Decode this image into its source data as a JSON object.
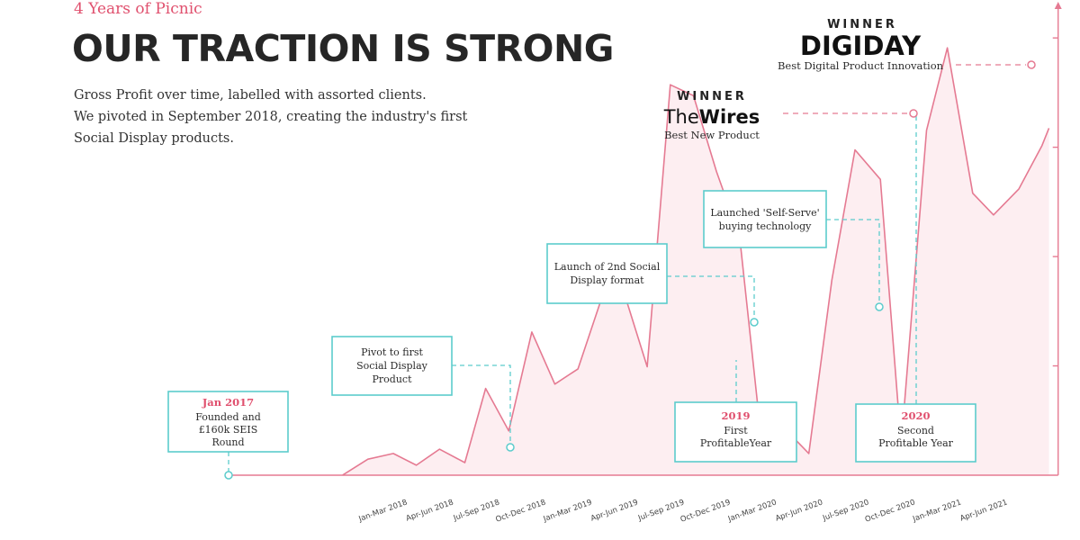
{
  "header": {
    "eyebrow": "4 Years of Picnic",
    "title": "OUR TRACTION IS STRONG",
    "description_lines": [
      "Gross Profit over time, labelled with assorted clients.",
      "We pivoted in September 2018, creating the industry's first",
      "Social Display products."
    ]
  },
  "colors": {
    "line": "#e57a92",
    "area": "#fdeef1",
    "accent": "#e0506e",
    "annotation": "#5ccccc",
    "axis": "#e57a92"
  },
  "chart_data": {
    "type": "line",
    "title": "",
    "xlabel": "",
    "ylabel": "",
    "x_ticks": [
      "Jan-Mar 2018",
      "Apr-Jun 2018",
      "Jul-Sep 2018",
      "Oct-Dec 2018",
      "Jan-Mar 2019",
      "Apr-Jun 2019",
      "Jul-Sep 2019",
      "Oct-Dec 2019",
      "Jan-Mar 2020",
      "Apr-Jun 2020",
      "Jul-Sep 2020",
      "Oct-Dec 2020",
      "Jan-Mar 2021",
      "Apr-Jun 2021"
    ],
    "x_range": [
      -1.7,
      14.4
    ],
    "ylim": [
      0,
      100
    ],
    "series": [
      {
        "x": [
          -1.1,
          -0.55,
          0,
          0.5,
          1.0,
          1.55,
          2.0,
          2.5,
          3.0,
          3.5,
          4.0,
          4.55,
          5.0,
          5.5,
          6.0,
          6.5,
          7.0,
          7.5,
          8.0,
          8.5,
          9.0,
          9.5,
          10.0,
          10.55,
          11.0,
          11.55,
          12.0,
          12.55,
          13.0,
          13.55,
          14.05,
          14.2
        ],
        "y": [
          0,
          3.7,
          5.0,
          2.3,
          6.0,
          2.9,
          20.0,
          10.2,
          33.0,
          21.0,
          24.5,
          42.0,
          42.0,
          25.0,
          90.0,
          87.5,
          70.0,
          55.0,
          5.5,
          10.5,
          5.0,
          45.0,
          75.0,
          68.2,
          7.0,
          79.5,
          98.5,
          65.0,
          60.0,
          66.0,
          76.0,
          80.0
        ]
      }
    ],
    "annotations": [
      {
        "title": "Jan 2017",
        "lines": [
          "Founded and",
          "£160k SEIS",
          "Round"
        ]
      },
      {
        "title": "",
        "lines": [
          "Pivot to first",
          "Social Display",
          "Product"
        ]
      },
      {
        "title": "",
        "lines": [
          "Launch of 2nd Social",
          "Display format"
        ]
      },
      {
        "title": "",
        "lines": [
          "Launched 'Self-Serve'",
          "buying technology"
        ]
      },
      {
        "title": "2019",
        "lines": [
          "First",
          "ProfitableYear"
        ]
      },
      {
        "title": "2020",
        "lines": [
          "Second",
          "Profitable Year"
        ]
      }
    ],
    "awards": [
      {
        "label": "WINNER",
        "brand_a": "DIGIDAY",
        "brand_b": "",
        "subtitle": "Best Digital Product Innovation"
      },
      {
        "label": "WINNER",
        "brand_a": "The",
        "brand_b": "Wires",
        "subtitle": "Best New Product"
      }
    ]
  }
}
